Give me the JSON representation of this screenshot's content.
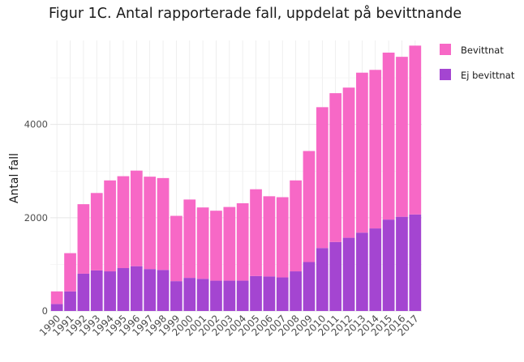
{
  "chart_data": {
    "type": "bar",
    "stacked": true,
    "title": "Figur 1C. Antal rapporterade fall, uppdelat på bevittnande",
    "xlabel": "",
    "ylabel": "Antal fall",
    "categories": [
      "1990",
      "1991",
      "1992",
      "1993",
      "1994",
      "1995",
      "1996",
      "1997",
      "1998",
      "1999",
      "2000",
      "2001",
      "2002",
      "2003",
      "2004",
      "2005",
      "2006",
      "2007",
      "2008",
      "2009",
      "2010",
      "2011",
      "2012",
      "2013",
      "2014",
      "2015",
      "2016",
      "2017"
    ],
    "series": [
      {
        "name": "Ej bevittnat",
        "color": "#a445d1",
        "values": [
          150,
          420,
          800,
          870,
          850,
          920,
          960,
          900,
          880,
          640,
          710,
          690,
          650,
          650,
          650,
          750,
          740,
          720,
          850,
          1050,
          1350,
          1480,
          1570,
          1680,
          1770,
          1960,
          2020,
          2070
        ]
      },
      {
        "name": "Bevittnat",
        "color": "#f768c6",
        "values": [
          270,
          820,
          1490,
          1660,
          1950,
          1970,
          2050,
          1980,
          1970,
          1400,
          1680,
          1530,
          1500,
          1580,
          1660,
          1860,
          1720,
          1720,
          1950,
          2380,
          3020,
          3190,
          3220,
          3430,
          3400,
          3580,
          3430,
          3620
        ]
      }
    ],
    "ylim": [
      0,
      5800
    ],
    "yticks": [
      0,
      2000,
      4000
    ],
    "ytick_labels": [
      "0",
      "2000",
      "4000"
    ],
    "grid": true,
    "legend_position": "top-right"
  }
}
